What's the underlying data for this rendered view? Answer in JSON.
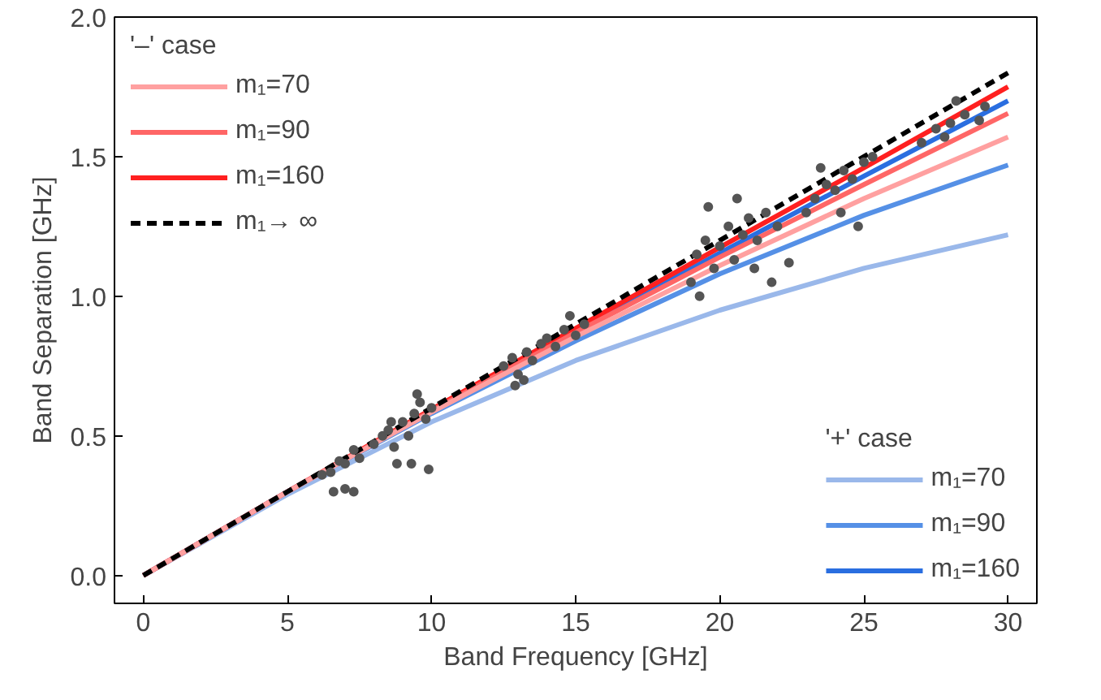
{
  "chart_data": {
    "type": "line",
    "xlabel": "Band Frequency [GHz]",
    "ylabel": "Band Separation [GHz]",
    "xlim": [
      -1,
      31
    ],
    "ylim": [
      -0.1,
      2.0
    ],
    "xticks": [
      0,
      5,
      10,
      15,
      20,
      25,
      30
    ],
    "yticks": [
      {
        "value": 0,
        "label": "0.0"
      },
      0.5,
      {
        "value": 1,
        "label": "1.0"
      },
      1.5,
      {
        "value": 2,
        "label": "2.0"
      }
    ],
    "grid": false,
    "legend": [
      "top left",
      "bottom right"
    ],
    "legend_title": [
      "'–' case",
      "'+' case"
    ],
    "marker": "none",
    "series": [
      {
        "name": "m₁=70",
        "color": "#ffa0a0",
        "x": [
          0,
          5,
          10,
          15,
          20,
          25,
          30
        ],
        "values": [
          0,
          0.3,
          0.585,
          0.855,
          1.11,
          1.35,
          1.57
        ]
      },
      {
        "name": "m₁=90",
        "color": "#ff6666",
        "x": [
          0,
          5,
          10,
          15,
          20,
          25,
          30
        ],
        "values": [
          0,
          0.3,
          0.59,
          0.87,
          1.14,
          1.4,
          1.655
        ]
      },
      {
        "name": "m₁=160",
        "color": "#ff2020",
        "x": [
          0,
          5,
          10,
          15,
          20,
          25,
          30
        ],
        "values": [
          0,
          0.3,
          0.595,
          0.885,
          1.175,
          1.46,
          1.75
        ]
      },
      {
        "name": "m₁→ ∞",
        "color": "#000000",
        "line_style": "dashed",
        "x": [
          0,
          5,
          10,
          15,
          20,
          25,
          30
        ],
        "values": [
          0,
          0.3,
          0.6,
          0.9,
          1.2,
          1.5,
          1.8
        ]
      },
      {
        "name": "m₁=70",
        "color": "#9ab8ea",
        "x": [
          0,
          5,
          10,
          15,
          20,
          25,
          30
        ],
        "values": [
          0,
          0.29,
          0.55,
          0.77,
          0.95,
          1.1,
          1.22
        ]
      },
      {
        "name": "m₁=90",
        "color": "#5590e6",
        "x": [
          0,
          5,
          10,
          15,
          20,
          25,
          30
        ],
        "values": [
          0,
          0.3,
          0.58,
          0.84,
          1.08,
          1.29,
          1.47
        ]
      },
      {
        "name": "m₁=160",
        "color": "#2a6ee0",
        "x": [
          0,
          5,
          10,
          15,
          20,
          25,
          30
        ],
        "values": [
          0,
          0.3,
          0.59,
          0.875,
          1.155,
          1.43,
          1.7
        ]
      },
      {
        "type": "scatter",
        "color": "#555555",
        "marker": "circle",
        "x": [
          6.2,
          6.5,
          6.8,
          7.0,
          7.3,
          7.5,
          6.6,
          7.0,
          7.3,
          8.0,
          8.3,
          8.5,
          8.7,
          9.0,
          9.2,
          9.4,
          9.6,
          9.8,
          10.0,
          8.8,
          9.3,
          9.9,
          9.5,
          8.6,
          12.5,
          12.8,
          13.0,
          13.3,
          13.5,
          13.8,
          14.0,
          14.3,
          14.6,
          15.0,
          15.3,
          13.2,
          12.9,
          14.8,
          19.0,
          19.2,
          19.5,
          19.8,
          20.0,
          20.3,
          20.5,
          20.8,
          21.0,
          21.3,
          21.6,
          22.0,
          19.3,
          19.6,
          20.6,
          21.8,
          22.4,
          21.2,
          23.0,
          23.3,
          23.7,
          24.0,
          24.3,
          24.6,
          25.0,
          25.3,
          24.2,
          23.5,
          24.8,
          27.0,
          27.5,
          28.0,
          28.5,
          29.0,
          29.2,
          28.2,
          27.8
        ],
        "values": [
          0.36,
          0.37,
          0.41,
          0.4,
          0.45,
          0.42,
          0.3,
          0.31,
          0.3,
          0.47,
          0.5,
          0.52,
          0.46,
          0.55,
          0.5,
          0.58,
          0.62,
          0.56,
          0.6,
          0.4,
          0.4,
          0.38,
          0.65,
          0.55,
          0.75,
          0.78,
          0.72,
          0.8,
          0.77,
          0.83,
          0.85,
          0.82,
          0.88,
          0.86,
          0.9,
          0.7,
          0.68,
          0.93,
          1.05,
          1.15,
          1.2,
          1.1,
          1.18,
          1.25,
          1.13,
          1.22,
          1.28,
          1.2,
          1.3,
          1.25,
          1.0,
          1.32,
          1.35,
          1.05,
          1.12,
          1.1,
          1.3,
          1.35,
          1.4,
          1.38,
          1.45,
          1.42,
          1.48,
          1.5,
          1.3,
          1.46,
          1.25,
          1.55,
          1.6,
          1.62,
          1.65,
          1.63,
          1.68,
          1.7,
          1.57
        ]
      }
    ]
  }
}
